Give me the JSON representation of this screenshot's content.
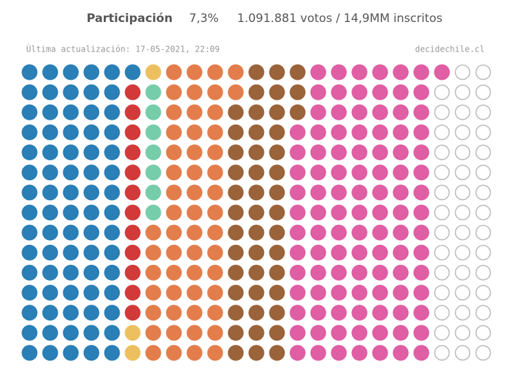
{
  "header": {
    "label": "Participación",
    "percent": "7,3%",
    "detail": "1.091.881 votos / 14,9MM inscritos"
  },
  "subheader": {
    "updated": "Última actualización: 17-05-2021, 22:09",
    "source": "decidechile.cl"
  },
  "groups": [
    {
      "color": "#2a7fb6",
      "fill": true
    },
    {
      "color": "#edc05f",
      "fill": true
    },
    {
      "color": "#d23a3a",
      "fill": true
    },
    {
      "color": "#76cdaa",
      "fill": true
    },
    {
      "color": "#e37e4c",
      "fill": true
    },
    {
      "color": "#9b633a",
      "fill": true
    },
    {
      "color": "#e05ea4",
      "fill": true
    },
    {
      "color": "#bbbbbb",
      "fill": false
    }
  ],
  "rows": [
    [
      {
        "group": 0,
        "n": 6
      },
      {
        "group": 1,
        "n": 1
      },
      {
        "group": 4,
        "n": 4
      },
      {
        "group": 5,
        "n": 3
      },
      {
        "group": 6,
        "n": 7
      },
      {
        "group": 7,
        "n": 2
      }
    ],
    [
      {
        "group": 0,
        "n": 5
      },
      {
        "group": 2,
        "n": 1
      },
      {
        "group": 3,
        "n": 1
      },
      {
        "group": 4,
        "n": 4
      },
      {
        "group": 5,
        "n": 3
      },
      {
        "group": 6,
        "n": 6
      },
      {
        "group": 7,
        "n": 3
      }
    ],
    [
      {
        "group": 0,
        "n": 5
      },
      {
        "group": 2,
        "n": 1
      },
      {
        "group": 3,
        "n": 1
      },
      {
        "group": 4,
        "n": 3
      },
      {
        "group": 5,
        "n": 4
      },
      {
        "group": 6,
        "n": 6
      },
      {
        "group": 7,
        "n": 3
      }
    ],
    [
      {
        "group": 0,
        "n": 5
      },
      {
        "group": 2,
        "n": 1
      },
      {
        "group": 3,
        "n": 1
      },
      {
        "group": 4,
        "n": 3
      },
      {
        "group": 5,
        "n": 3
      },
      {
        "group": 6,
        "n": 7
      },
      {
        "group": 7,
        "n": 3
      }
    ],
    [
      {
        "group": 0,
        "n": 5
      },
      {
        "group": 2,
        "n": 1
      },
      {
        "group": 3,
        "n": 1
      },
      {
        "group": 4,
        "n": 3
      },
      {
        "group": 5,
        "n": 3
      },
      {
        "group": 6,
        "n": 7
      },
      {
        "group": 7,
        "n": 3
      }
    ],
    [
      {
        "group": 0,
        "n": 5
      },
      {
        "group": 2,
        "n": 1
      },
      {
        "group": 3,
        "n": 1
      },
      {
        "group": 4,
        "n": 3
      },
      {
        "group": 5,
        "n": 3
      },
      {
        "group": 6,
        "n": 7
      },
      {
        "group": 7,
        "n": 3
      }
    ],
    [
      {
        "group": 0,
        "n": 5
      },
      {
        "group": 2,
        "n": 1
      },
      {
        "group": 3,
        "n": 1
      },
      {
        "group": 4,
        "n": 3
      },
      {
        "group": 5,
        "n": 3
      },
      {
        "group": 6,
        "n": 7
      },
      {
        "group": 7,
        "n": 3
      }
    ],
    [
      {
        "group": 0,
        "n": 5
      },
      {
        "group": 2,
        "n": 1
      },
      {
        "group": 3,
        "n": 1
      },
      {
        "group": 4,
        "n": 3
      },
      {
        "group": 5,
        "n": 3
      },
      {
        "group": 6,
        "n": 7
      },
      {
        "group": 7,
        "n": 3
      }
    ],
    [
      {
        "group": 0,
        "n": 5
      },
      {
        "group": 2,
        "n": 1
      },
      {
        "group": 4,
        "n": 4
      },
      {
        "group": 5,
        "n": 3
      },
      {
        "group": 6,
        "n": 7
      },
      {
        "group": 7,
        "n": 3
      }
    ],
    [
      {
        "group": 0,
        "n": 5
      },
      {
        "group": 2,
        "n": 1
      },
      {
        "group": 4,
        "n": 4
      },
      {
        "group": 5,
        "n": 3
      },
      {
        "group": 6,
        "n": 7
      },
      {
        "group": 7,
        "n": 3
      }
    ],
    [
      {
        "group": 0,
        "n": 5
      },
      {
        "group": 2,
        "n": 1
      },
      {
        "group": 4,
        "n": 4
      },
      {
        "group": 5,
        "n": 3
      },
      {
        "group": 6,
        "n": 7
      },
      {
        "group": 7,
        "n": 3
      }
    ],
    [
      {
        "group": 0,
        "n": 5
      },
      {
        "group": 2,
        "n": 1
      },
      {
        "group": 4,
        "n": 4
      },
      {
        "group": 5,
        "n": 3
      },
      {
        "group": 6,
        "n": 7
      },
      {
        "group": 7,
        "n": 3
      }
    ],
    [
      {
        "group": 0,
        "n": 5
      },
      {
        "group": 2,
        "n": 1
      },
      {
        "group": 4,
        "n": 4
      },
      {
        "group": 5,
        "n": 3
      },
      {
        "group": 6,
        "n": 7
      },
      {
        "group": 7,
        "n": 3
      }
    ],
    [
      {
        "group": 0,
        "n": 5
      },
      {
        "group": 1,
        "n": 1
      },
      {
        "group": 4,
        "n": 4
      },
      {
        "group": 5,
        "n": 3
      },
      {
        "group": 6,
        "n": 7
      },
      {
        "group": 7,
        "n": 3
      }
    ],
    [
      {
        "group": 0,
        "n": 5
      },
      {
        "group": 1,
        "n": 1
      },
      {
        "group": 4,
        "n": 4
      },
      {
        "group": 5,
        "n": 3
      },
      {
        "group": 6,
        "n": 7
      },
      {
        "group": 7,
        "n": 3
      }
    ]
  ]
}
